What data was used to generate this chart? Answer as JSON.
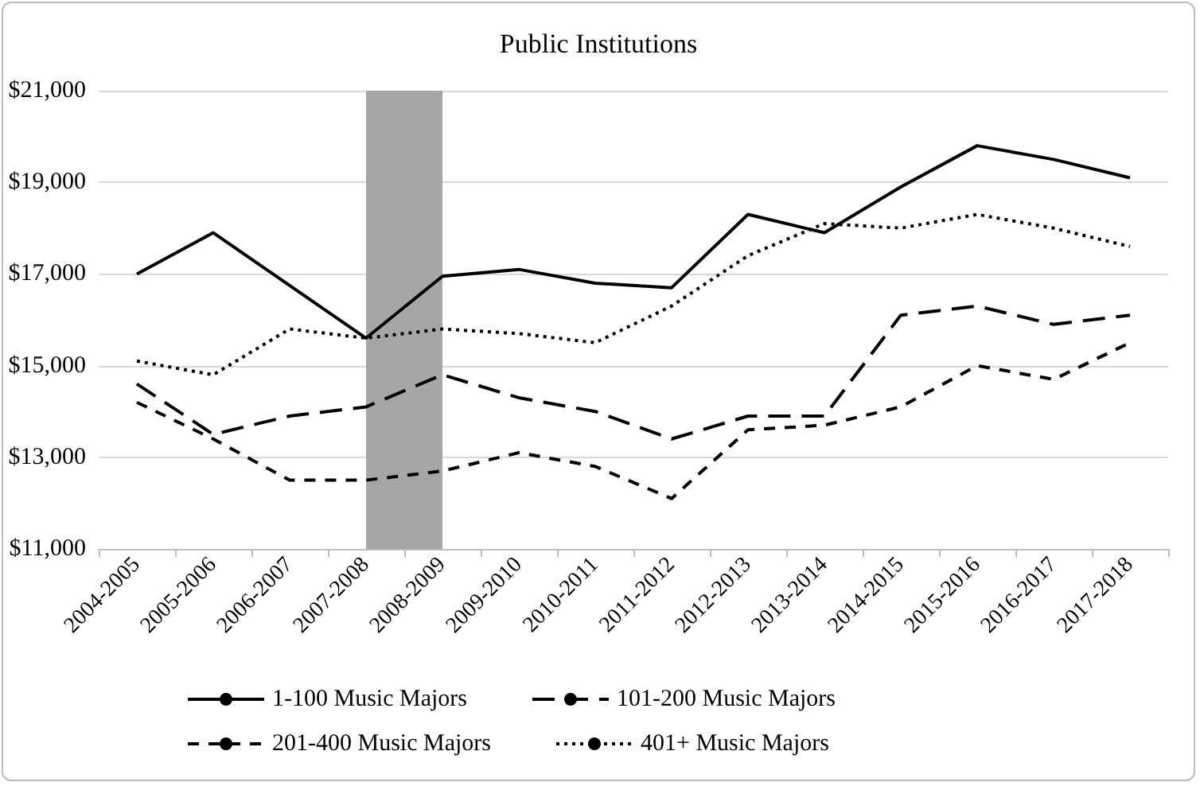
{
  "chart_data": {
    "type": "line",
    "title": "Public Institutions",
    "categories": [
      "2004-2005",
      "2005-2006",
      "2006-2007",
      "2007-2008",
      "2008-2009",
      "2009-2010",
      "2010-2011",
      "2011-2012",
      "2012-2013",
      "2013-2014",
      "2014-2015",
      "2015-2016",
      "2016-2017",
      "2017-2018"
    ],
    "series": [
      {
        "name": "1-100 Music Majors",
        "color": "#000000",
        "line_style": "solid",
        "values": [
          17000,
          17900,
          16750,
          15600,
          16950,
          17100,
          16800,
          16700,
          18300,
          17900,
          18900,
          19800,
          19500,
          19100
        ]
      },
      {
        "name": "101-200 Music Majors",
        "color": "#000000",
        "line_style": "dashed",
        "values": [
          14600,
          13500,
          13900,
          14100,
          14800,
          14300,
          14000,
          13400,
          13900,
          13900,
          16100,
          16300,
          15900,
          16100
        ]
      },
      {
        "name": "201-400 Music Majors",
        "color": "#000000",
        "line_style": "dashed",
        "values": [
          14200,
          13400,
          12500,
          12500,
          12700,
          13100,
          12800,
          12100,
          13600,
          13700,
          14100,
          15000,
          14700,
          15500
        ]
      },
      {
        "name": "401+ Music Majors",
        "color": "#000000",
        "line_style": "dotted",
        "values": [
          15100,
          14800,
          15800,
          15600,
          15800,
          15700,
          15500,
          16300,
          17400,
          18100,
          18000,
          18300,
          18000,
          17600
        ]
      }
    ],
    "ylim": [
      11000,
      21000
    ],
    "yticks": [
      {
        "value": 11000,
        "label": "$11,000"
      },
      {
        "value": 13000,
        "label": "$13,000"
      },
      {
        "value": 15000,
        "label": "$15,000"
      },
      {
        "value": 17000,
        "label": "$17,000"
      },
      {
        "value": 19000,
        "label": "$19,000"
      },
      {
        "value": 21000,
        "label": "$21,000"
      }
    ],
    "bands": [
      {
        "axis": "x",
        "from": "2007-2008",
        "to": "2008-2009",
        "color": "#a6a6a6"
      }
    ],
    "grid": "y",
    "legend": "bottom",
    "marker": "none"
  }
}
